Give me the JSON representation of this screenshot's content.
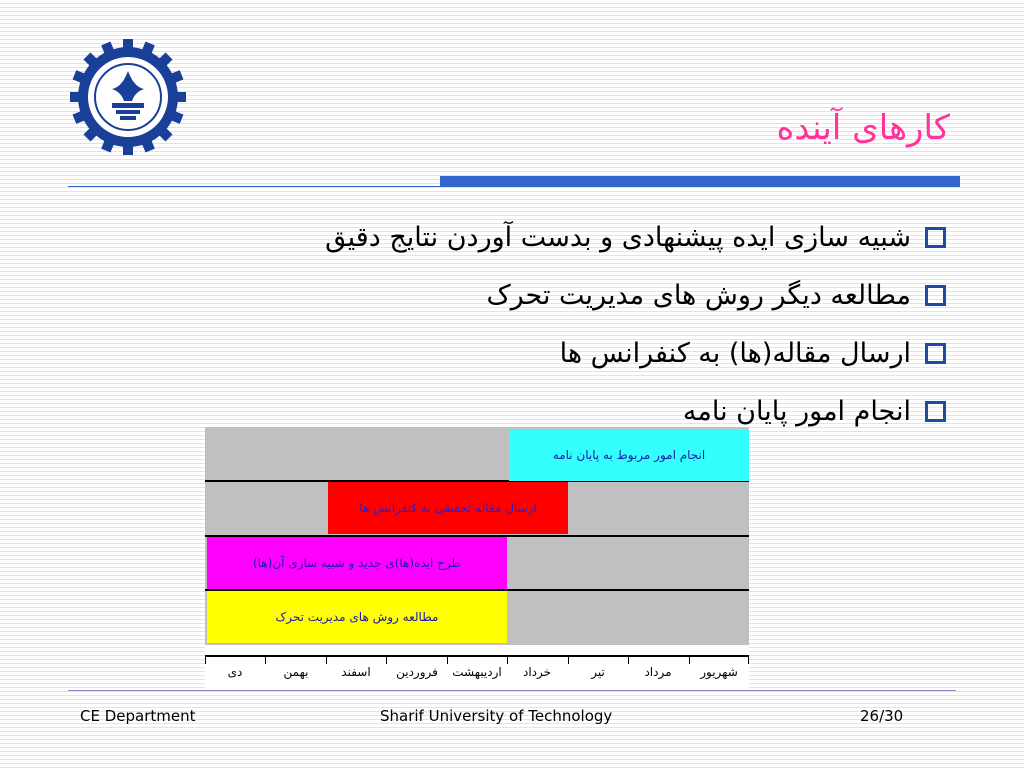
{
  "slide": {
    "title": "کارهای آینده",
    "bullets": [
      "شبیه سازی ایده پیشنهادی و بدست آوردن نتایج دقیق",
      "مطالعه دیگر روش های مدیریت تحرک",
      "ارسال مقاله(ها) به کنفرانس ها",
      "انجام امور پایان نامه"
    ]
  },
  "chart_data": {
    "type": "gantt",
    "months": [
      "دی",
      "بهمن",
      "اسفند",
      "فروردین",
      "اردیبهشت",
      "خرداد",
      "تیر",
      "مرداد",
      "شهریور"
    ],
    "tasks": [
      {
        "label": "انجام امور مربوط به پایان نامه",
        "start_month": "خرداد",
        "end_month": "شهریور",
        "color": "#33ffff",
        "row": 0
      },
      {
        "label": "ارسال مقاله تحقیقی به کنفرانس ها",
        "start_month": "اسفند",
        "end_month": "خرداد",
        "color": "#ff0000",
        "row": 1
      },
      {
        "label": "طرح ایده(ها)ی جدید و شبیه سازی آن(ها)",
        "start_month": "دی",
        "end_month": "اردیبهشت",
        "color": "#ff00ff",
        "row": 2
      },
      {
        "label": "مطالعه روش های مدیریت تحرک",
        "start_month": "دی",
        "end_month": "اردیبهشت",
        "color": "#ffff00",
        "row": 3
      }
    ]
  },
  "footer": {
    "left": "CE Department",
    "center": "Sharif University of Technology",
    "page": "26/30"
  }
}
